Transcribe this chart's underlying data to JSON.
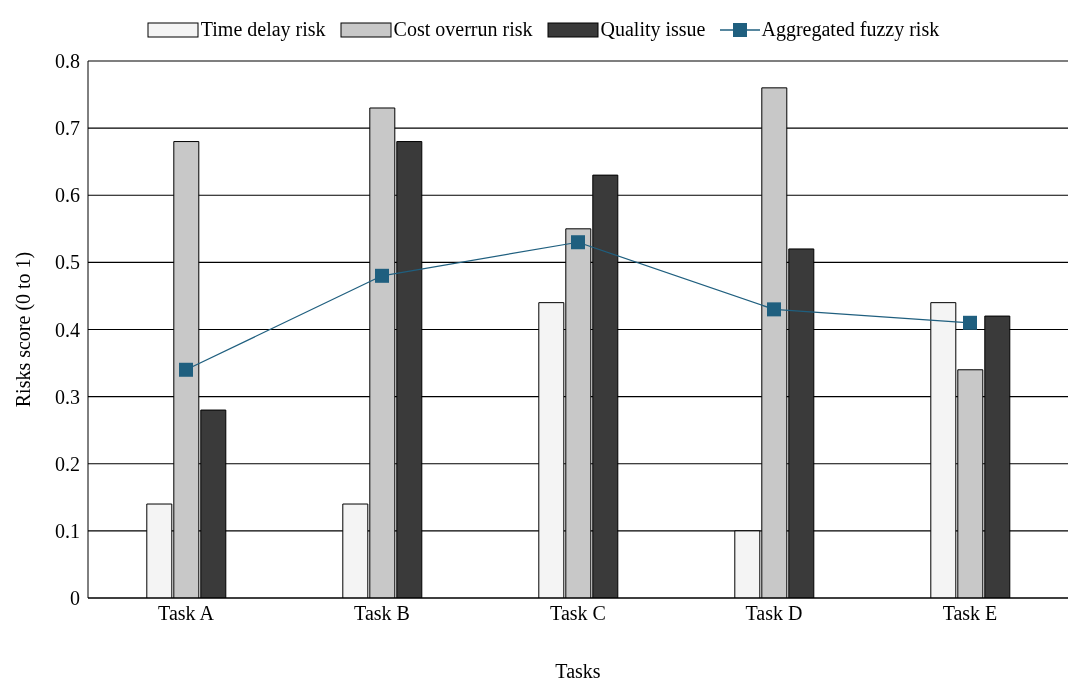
{
  "chart_data": {
    "type": "bar",
    "xlabel": "Tasks",
    "ylabel": "Risks score (0 to 1)",
    "categories": [
      "Task A",
      "Task B",
      "Task C",
      "Task D",
      "Task E"
    ],
    "series": [
      {
        "name": "Time delay risk",
        "color": "#f4f4f4",
        "values": [
          0.14,
          0.14,
          0.44,
          0.1,
          0.44
        ]
      },
      {
        "name": "Cost overrun risk",
        "color": "#c8c8c8",
        "values": [
          0.68,
          0.73,
          0.55,
          0.76,
          0.34
        ]
      },
      {
        "name": "Quality issue",
        "color": "#3a3a3a",
        "values": [
          0.28,
          0.68,
          0.63,
          0.52,
          0.42
        ]
      },
      {
        "name": "Aggregated fuzzy risk",
        "type": "line",
        "color": "#1f5f7f",
        "values": [
          0.34,
          0.48,
          0.53,
          0.43,
          0.41
        ]
      }
    ],
    "ylim": [
      0,
      0.8
    ],
    "yticks": [
      0,
      0.1,
      0.2,
      0.3,
      0.4,
      0.5,
      0.6,
      0.7,
      0.8
    ],
    "grid": "y",
    "legend": "top",
    "marker": "square",
    "line_style": "solid"
  }
}
